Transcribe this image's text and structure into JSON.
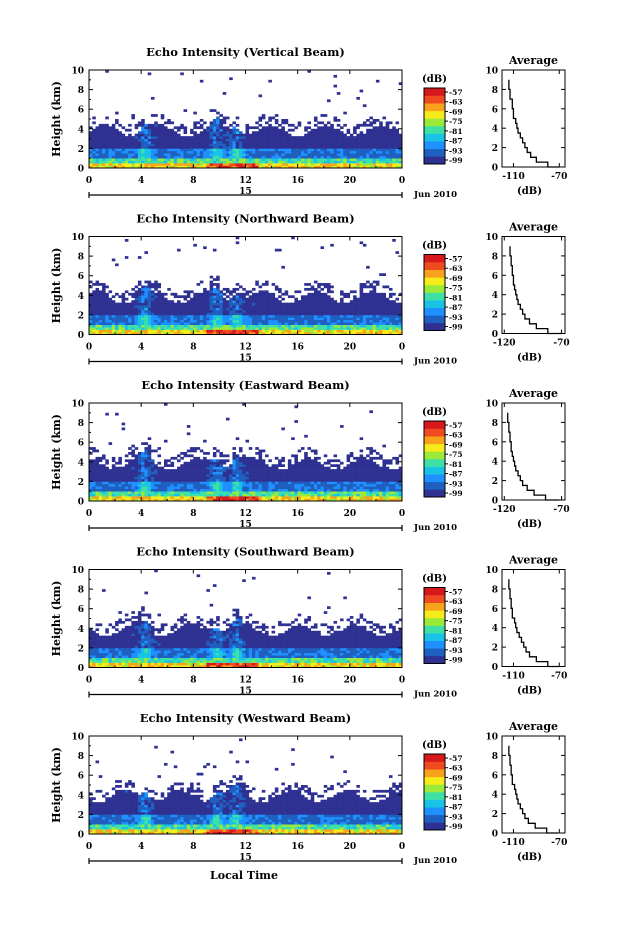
{
  "figure": {
    "x_axis_label": "Local Time",
    "date_label": "Jun 2010",
    "day_label": "15",
    "colorbar_unit": "(dB)",
    "colorbar_ticks": [
      "-57",
      "-63",
      "-69",
      "-75",
      "-81",
      "-87",
      "-93",
      "-99"
    ],
    "colorbar_colors": [
      "#2e3192",
      "#1f5fbf",
      "#1e90ff",
      "#18c3e6",
      "#3ee0a6",
      "#9bea3a",
      "#f6ec1b",
      "#f7a21a",
      "#ef4a20",
      "#d7191c"
    ]
  },
  "chart_data": [
    {
      "type": "heatmap",
      "title": "Echo Intensity (Vertical Beam)",
      "ylabel": "Height (km)",
      "x_ticks": [
        "0",
        "4",
        "8",
        "12",
        "16",
        "20",
        "0"
      ],
      "xlim": [
        0,
        24
      ],
      "ylim": [
        0,
        10
      ],
      "y_ticks": [
        "0",
        "2",
        "4",
        "6",
        "8",
        "10"
      ],
      "colorbar_range_dB": [
        -99,
        -57
      ],
      "profile": {
        "title": "Average",
        "xlabel": "(dB)",
        "x_ticks": [
          "-110",
          "-70"
        ],
        "xlim": [
          -120,
          -65
        ],
        "y_ticks": [
          "0",
          "2",
          "4",
          "6",
          "8",
          "10"
        ],
        "height_km": [
          0,
          0.5,
          1,
          1.5,
          2,
          2.5,
          3,
          3.5,
          4,
          4.5,
          5,
          6,
          7,
          8,
          9
        ],
        "dB": [
          -70,
          -80,
          -90,
          -95,
          -98,
          -100,
          -102,
          -104,
          -106,
          -107,
          -108,
          -110,
          -111,
          -113,
          -114
        ]
      }
    },
    {
      "type": "heatmap",
      "title": "Echo Intensity (Northward Beam)",
      "ylabel": "Height (km)",
      "x_ticks": [
        "0",
        "4",
        "8",
        "12",
        "16",
        "20",
        "0"
      ],
      "xlim": [
        0,
        24
      ],
      "ylim": [
        0,
        10
      ],
      "y_ticks": [
        "0",
        "2",
        "4",
        "6",
        "8",
        "10"
      ],
      "colorbar_range_dB": [
        -99,
        -57
      ],
      "profile": {
        "title": "Average",
        "xlabel": "(dB)",
        "x_ticks": [
          "-120",
          "-70"
        ],
        "xlim": [
          -122,
          -67
        ],
        "y_ticks": [
          "0",
          "2",
          "4",
          "6",
          "8",
          "10"
        ],
        "height_km": [
          0,
          0.5,
          1,
          1.5,
          2,
          2.5,
          3,
          3.5,
          4,
          4.5,
          5,
          6,
          7,
          8,
          9
        ],
        "dB": [
          -70,
          -82,
          -92,
          -98,
          -102,
          -104,
          -106,
          -108,
          -109,
          -110,
          -111,
          -112,
          -113,
          -114,
          -115
        ]
      }
    },
    {
      "type": "heatmap",
      "title": "Echo Intensity (Eastward Beam)",
      "ylabel": "Height (km)",
      "x_ticks": [
        "0",
        "4",
        "8",
        "12",
        "16",
        "20",
        "0"
      ],
      "xlim": [
        0,
        24
      ],
      "ylim": [
        0,
        10
      ],
      "y_ticks": [
        "0",
        "2",
        "4",
        "6",
        "8",
        "10"
      ],
      "colorbar_range_dB": [
        -99,
        -57
      ],
      "profile": {
        "title": "Average",
        "xlabel": "(dB)",
        "x_ticks": [
          "-120",
          "-70"
        ],
        "xlim": [
          -122,
          -67
        ],
        "y_ticks": [
          "0",
          "2",
          "4",
          "6",
          "8",
          "10"
        ],
        "height_km": [
          0,
          0.5,
          1,
          1.5,
          2,
          2.5,
          3,
          3.5,
          4,
          4.5,
          5,
          6,
          7,
          8,
          9
        ],
        "dB": [
          -72,
          -84,
          -94,
          -100,
          -104,
          -106,
          -108,
          -110,
          -111,
          -112,
          -113,
          -114,
          -115,
          -116,
          -117
        ]
      }
    },
    {
      "type": "heatmap",
      "title": "Echo Intensity (Southward Beam)",
      "ylabel": "Height (km)",
      "x_ticks": [
        "0",
        "4",
        "8",
        "12",
        "16",
        "20",
        "0"
      ],
      "xlim": [
        0,
        24
      ],
      "ylim": [
        0,
        10
      ],
      "y_ticks": [
        "0",
        "2",
        "4",
        "6",
        "8",
        "10"
      ],
      "colorbar_range_dB": [
        -99,
        -57
      ],
      "profile": {
        "title": "Average",
        "xlabel": "(dB)",
        "x_ticks": [
          "-110",
          "-70"
        ],
        "xlim": [
          -120,
          -65
        ],
        "y_ticks": [
          "0",
          "2",
          "4",
          "6",
          "8",
          "10"
        ],
        "height_km": [
          0,
          0.5,
          1,
          1.5,
          2,
          2.5,
          3,
          3.5,
          4,
          4.5,
          5,
          6,
          7,
          8,
          9
        ],
        "dB": [
          -70,
          -80,
          -90,
          -96,
          -99,
          -101,
          -103,
          -105,
          -107,
          -108,
          -109,
          -111,
          -112,
          -113,
          -114
        ]
      }
    },
    {
      "type": "heatmap",
      "title": "Echo Intensity (Westward Beam)",
      "ylabel": "Height (km)",
      "x_ticks": [
        "0",
        "4",
        "8",
        "12",
        "16",
        "20",
        "0"
      ],
      "xlim": [
        0,
        24
      ],
      "ylim": [
        0,
        10
      ],
      "y_ticks": [
        "0",
        "2",
        "4",
        "6",
        "8",
        "10"
      ],
      "colorbar_range_dB": [
        -99,
        -57
      ],
      "profile": {
        "title": "Average",
        "xlabel": "(dB)",
        "x_ticks": [
          "-110",
          "-70"
        ],
        "xlim": [
          -120,
          -65
        ],
        "y_ticks": [
          "0",
          "2",
          "4",
          "6",
          "8",
          "10"
        ],
        "height_km": [
          0,
          0.5,
          1,
          1.5,
          2,
          2.5,
          3,
          3.5,
          4,
          4.5,
          5,
          6,
          7,
          8,
          9
        ],
        "dB": [
          -71,
          -81,
          -91,
          -97,
          -100,
          -102,
          -104,
          -106,
          -107,
          -108,
          -109,
          -111,
          -112,
          -113,
          -114
        ]
      }
    }
  ]
}
